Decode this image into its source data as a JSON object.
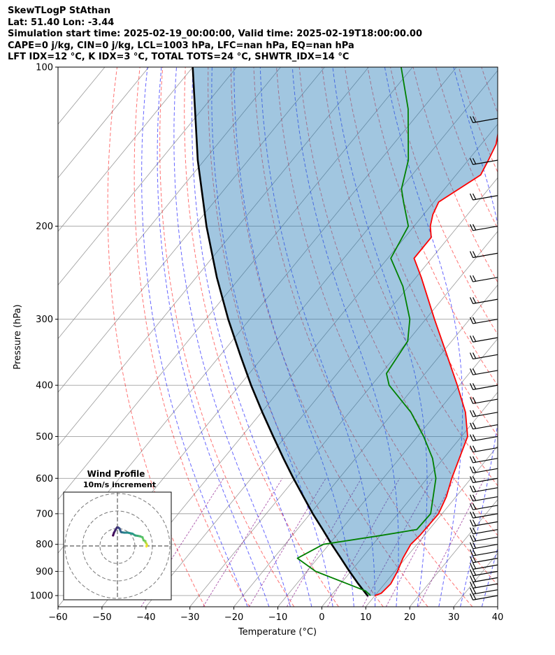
{
  "header": {
    "title": "SkewTLogP StAthan",
    "location": "Lat: 51.40   Lon: -3.44",
    "times": "Simulation start time: 2025-02-19_00:00:00, Valid time: 2025-02-19T18:00:00.00",
    "indices1": "CAPE=0 j/kg, CIN=0 j/kg, LCL=1003 hPa, LFC=nan hPa, EQ=nan hPa",
    "indices2": "LFT IDX=12 °C, K IDX=3 °C, TOTAL TOTS=24 °C, SHWTR_IDX=14 °C"
  },
  "chart_data": [
    {
      "type": "line",
      "subtype": "skew-t log-p",
      "xlabel": "Temperature (°C)",
      "ylabel": "Pressure (hPa)",
      "xlim": [
        -60,
        40
      ],
      "ylim": [
        1050,
        100
      ],
      "y_scale": "log",
      "x_ticks": [
        -60,
        -50,
        -40,
        -30,
        -20,
        -10,
        0,
        10,
        20,
        30,
        40
      ],
      "y_ticks": [
        100,
        200,
        300,
        400,
        500,
        600,
        700,
        800,
        900,
        1000
      ],
      "grid": true,
      "colors": {
        "temperature": "#ff0000",
        "dewpoint": "#008000",
        "parcel": "#000000",
        "cape_cin_fill": "#1f77b4",
        "isotherm": "#888888",
        "dry_adiabat": "#ff0000",
        "moist_adiabat": "#0000ff",
        "mixing_ratio": "#800080"
      },
      "series": [
        {
          "key": "temperature",
          "p": [
            1000,
            990,
            950,
            900,
            850,
            800,
            770,
            700,
            650,
            600,
            500,
            450,
            400,
            350,
            300,
            250,
            230,
            210,
            200,
            190,
            180,
            160,
            150,
            140,
            130,
            120,
            110,
            100
          ],
          "values": [
            10.0,
            11.0,
            11.4,
            10.6,
            9.4,
            8.6,
            9.0,
            9.2,
            7.8,
            5.6,
            1.4,
            -3.6,
            -10.5,
            -18.6,
            -28.0,
            -38.8,
            -44.0,
            -44.0,
            -46.3,
            -47.9,
            -48.9,
            -44.4,
            -45.4,
            -46.6,
            -49.1,
            -51.7,
            -54.4,
            -57.6
          ]
        },
        {
          "key": "dewpoint",
          "p": [
            1000,
            980,
            900,
            850,
            800,
            770,
            750,
            700,
            600,
            550,
            500,
            450,
            400,
            380,
            330,
            300,
            260,
            230,
            200,
            180,
            170,
            150,
            120,
            100
          ],
          "values": [
            9.0,
            7.0,
            -8.0,
            -14.6,
            -11.3,
            0.0,
            7.2,
            7.4,
            2.0,
            -2.5,
            -8.6,
            -16.0,
            -26.0,
            -28.8,
            -30.0,
            -33.6,
            -41.3,
            -49.3,
            -51.3,
            -56.9,
            -59.8,
            -63.6,
            -73.2,
            -82.6
          ]
        },
        {
          "key": "parcel",
          "p": [
            1003,
            1000,
            950,
            900,
            850,
            800,
            750,
            700,
            650,
            600,
            550,
            500,
            450,
            400,
            350,
            300,
            250,
            200,
            150,
            100
          ],
          "values": [
            8.5,
            8.3,
            4.0,
            -0.3,
            -4.7,
            -9.4,
            -14.2,
            -19.4,
            -24.7,
            -30.4,
            -36.4,
            -42.8,
            -49.8,
            -57.4,
            -65.6,
            -74.9,
            -85.3,
            -97.2,
            -111.5,
            -130.0
          ]
        }
      ]
    },
    {
      "type": "scatter",
      "title": "Wind Profile",
      "subtitle": "10m/s increment",
      "grid": true,
      "ring_step_ms": 10,
      "colormap": "viridis",
      "series": [
        {
          "key": "hodograph",
          "u": [
            16.6,
            17.0,
            16.5,
            16.0,
            16.0,
            15.0,
            14.3,
            13.0,
            11.5,
            10.2,
            8.6,
            6.0,
            4.0,
            2.5,
            2.0,
            1.6,
            1.2,
            0.5,
            -0.3,
            -1.2,
            -2.0,
            -2.5
          ],
          "v": [
            -0.3,
            0.5,
            1.5,
            2.2,
            2.8,
            3.2,
            5.0,
            5.5,
            5.8,
            6.0,
            7.0,
            7.6,
            7.6,
            7.8,
            8.0,
            9.0,
            10.0,
            10.5,
            10.5,
            9.0,
            7.5,
            6.0
          ]
        }
      ]
    }
  ]
}
